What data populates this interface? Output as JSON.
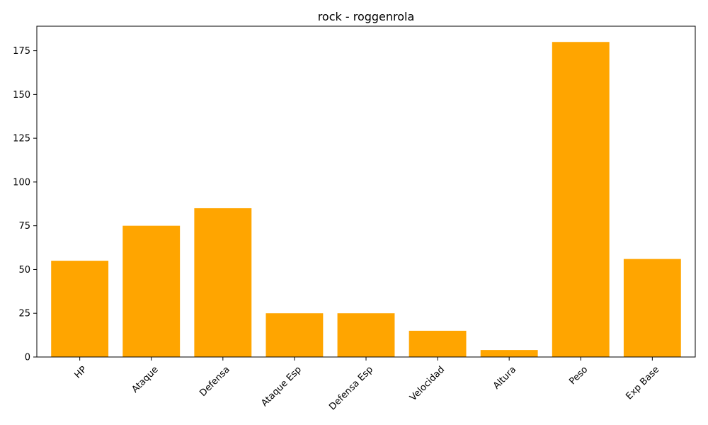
{
  "chart_data": {
    "type": "bar",
    "title": "rock - roggenrola",
    "xlabel": "",
    "ylabel": "",
    "categories": [
      "HP",
      "Ataque",
      "Defensa",
      "Ataque Esp",
      "Defensa Esp",
      "Velocidad",
      "Altura",
      "Peso",
      "Exp Base"
    ],
    "values": [
      55,
      75,
      85,
      25,
      25,
      15,
      4,
      180,
      56
    ],
    "ylim": [
      0,
      189
    ],
    "yticks": [
      0,
      25,
      50,
      75,
      100,
      125,
      150,
      175
    ],
    "bar_color": "#FFA500",
    "grid": false,
    "xtick_rotation": 45
  }
}
